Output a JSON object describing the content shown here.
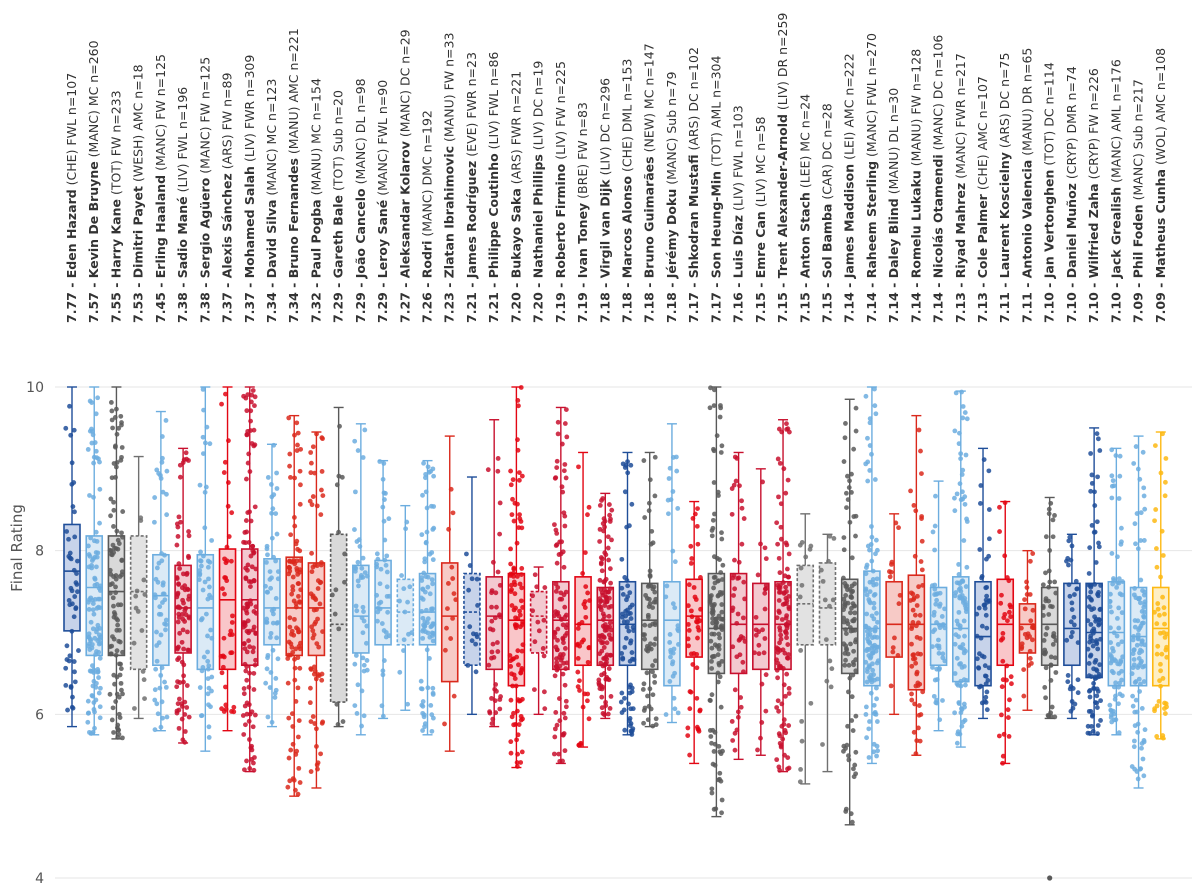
{
  "chart_data": {
    "type": "box",
    "ylabel": "Final Rating",
    "ylim": [
      4,
      10
    ],
    "yticks": [
      4,
      6,
      8,
      10
    ],
    "grid": true,
    "legend": "none",
    "series": [
      {
        "mean": "7.77",
        "player": "Eden Hazard",
        "info": "(CHE) FWL n=107",
        "color": "#1f4e99",
        "fill": "#c7d3ea",
        "q1": 7.02,
        "median": 7.75,
        "q3": 8.32,
        "wlo": 5.85,
        "whi": 10.0,
        "dashed": false
      },
      {
        "mean": "7.57",
        "player": "Kevin De Bruyne",
        "info": "(MANC) MC n=260",
        "color": "#6caddf",
        "fill": "#dbeaf6",
        "q1": 6.72,
        "median": 7.55,
        "q3": 8.18,
        "wlo": 5.75,
        "whi": 10.0,
        "dashed": false
      },
      {
        "mean": "7.55",
        "player": "Harry Kane",
        "info": "(TOT) FW n=233",
        "color": "#595959",
        "fill": "#d9d9d9",
        "q1": 6.72,
        "median": 7.5,
        "q3": 8.18,
        "wlo": 5.7,
        "whi": 10.0,
        "dashed": false
      },
      {
        "mean": "7.53",
        "player": "Dimitri Payet",
        "info": "(WESH) AMC n=18",
        "color": "#707070",
        "fill": "#e2e2e2",
        "q1": 6.55,
        "median": 7.5,
        "q3": 8.18,
        "wlo": 5.95,
        "whi": 9.15,
        "dashed": true
      },
      {
        "mean": "7.45",
        "player": "Erling Haaland",
        "info": "(MANC) FW n=125",
        "color": "#6caddf",
        "fill": "#dbeaf6",
        "q1": 6.6,
        "median": 7.45,
        "q3": 7.95,
        "wlo": 5.8,
        "whi": 9.7,
        "dashed": false
      },
      {
        "mean": "7.38",
        "player": "Sadio Mané",
        "info": "(LIV) FWL n=196",
        "color": "#c8102e",
        "fill": "#f3c9d0",
        "q1": 6.75,
        "median": 7.3,
        "q3": 7.82,
        "wlo": 5.65,
        "whi": 9.25,
        "dashed": false
      },
      {
        "mean": "7.38",
        "player": "Sergio Agüero",
        "info": "(MANC) FW n=125",
        "color": "#6caddf",
        "fill": "#dbeaf6",
        "q1": 6.55,
        "median": 7.3,
        "q3": 7.95,
        "wlo": 5.55,
        "whi": 10.0,
        "dashed": false
      },
      {
        "mean": "7.37",
        "player": "Alexis Sánchez",
        "info": "(ARS) FW n=89",
        "color": "#e30613",
        "fill": "#f9c6c9",
        "q1": 6.55,
        "median": 7.4,
        "q3": 8.02,
        "wlo": 5.8,
        "whi": 10.0,
        "dashed": false
      },
      {
        "mean": "7.37",
        "player": "Mohamed Salah",
        "info": "(LIV) FWR n=309",
        "color": "#c8102e",
        "fill": "#f3c9d0",
        "q1": 6.6,
        "median": 7.4,
        "q3": 8.02,
        "wlo": 5.3,
        "whi": 10.0,
        "dashed": false
      },
      {
        "mean": "7.34",
        "player": "David Silva",
        "info": "(MANC) MC n=123",
        "color": "#6caddf",
        "fill": "#dbeaf6",
        "q1": 6.85,
        "median": 7.3,
        "q3": 7.9,
        "wlo": 5.85,
        "whi": 9.3,
        "dashed": false
      },
      {
        "mean": "7.34",
        "player": "Bruno Fernandes",
        "info": "(MANU) AMC n=221",
        "color": "#da291c",
        "fill": "#f7cac6",
        "q1": 6.72,
        "median": 7.3,
        "q3": 7.92,
        "wlo": 5.0,
        "whi": 9.65,
        "dashed": false
      },
      {
        "mean": "7.32",
        "player": "Paul Pogba",
        "info": "(MANU) MC n=154",
        "color": "#da291c",
        "fill": "#f7cac6",
        "q1": 6.72,
        "median": 7.3,
        "q3": 7.85,
        "wlo": 5.1,
        "whi": 9.45,
        "dashed": false
      },
      {
        "mean": "7.29",
        "player": "Gareth Bale",
        "info": "(TOT) Sub n=20",
        "color": "#595959",
        "fill": "#d9d9d9",
        "q1": 6.15,
        "median": 7.1,
        "q3": 8.2,
        "wlo": 5.85,
        "whi": 9.75,
        "dashed": true
      },
      {
        "mean": "7.29",
        "player": "João Cancelo",
        "info": "(MANC) DL n=98",
        "color": "#6caddf",
        "fill": "#dbeaf6",
        "q1": 6.75,
        "median": 7.2,
        "q3": 7.82,
        "wlo": 5.75,
        "whi": 9.55,
        "dashed": false
      },
      {
        "mean": "7.29",
        "player": "Leroy Sané",
        "info": "(MANC) FWL n=90",
        "color": "#6caddf",
        "fill": "#dbeaf6",
        "q1": 6.85,
        "median": 7.3,
        "q3": 7.88,
        "wlo": 5.95,
        "whi": 9.1,
        "dashed": false
      },
      {
        "mean": "7.27",
        "player": "Aleksandar Kolarov",
        "info": "(MANC) DC n=29",
        "color": "#6caddf",
        "fill": "#dbeaf6",
        "q1": 6.85,
        "median": 7.25,
        "q3": 7.65,
        "wlo": 6.05,
        "whi": 8.55,
        "dashed": true
      },
      {
        "mean": "7.26",
        "player": "Rodri",
        "info": "(MANC) DMC n=192",
        "color": "#6caddf",
        "fill": "#dbeaf6",
        "q1": 6.85,
        "median": 7.25,
        "q3": 7.72,
        "wlo": 5.75,
        "whi": 9.1,
        "dashed": false
      },
      {
        "mean": "7.23",
        "player": "Zlatan Ibrahimovic",
        "info": "(MANU) FW n=33",
        "color": "#da291c",
        "fill": "#f7cac6",
        "q1": 6.4,
        "median": 7.2,
        "q3": 7.85,
        "wlo": 5.55,
        "whi": 9.4,
        "dashed": false
      },
      {
        "mean": "7.21",
        "player": "James Rodríguez",
        "info": "(EVE) FWR n=23",
        "color": "#1f4e99",
        "fill": "#c7d3ea",
        "q1": 6.6,
        "median": 7.25,
        "q3": 7.72,
        "wlo": 6.0,
        "whi": 8.9,
        "dashed": true
      },
      {
        "mean": "7.21",
        "player": "Philippe Coutinho",
        "info": "(LIV) FWL n=86",
        "color": "#c8102e",
        "fill": "#f3c9d0",
        "q1": 6.55,
        "median": 7.2,
        "q3": 7.68,
        "wlo": 5.85,
        "whi": 9.6,
        "dashed": false
      },
      {
        "mean": "7.20",
        "player": "Bukayo Saka",
        "info": "(ARS) FWR n=221",
        "color": "#e30613",
        "fill": "#f9c6c9",
        "q1": 6.35,
        "median": 7.15,
        "q3": 7.72,
        "wlo": 5.35,
        "whi": 10.0,
        "dashed": false
      },
      {
        "mean": "7.20",
        "player": "Nathaniel Phillips",
        "info": "(LIV) DC n=19",
        "color": "#c8102e",
        "fill": "#f3c9d0",
        "q1": 6.75,
        "median": 7.2,
        "q3": 7.5,
        "wlo": 6.0,
        "whi": 7.8,
        "dashed": true
      },
      {
        "mean": "7.19",
        "player": "Roberto Firmino",
        "info": "(LIV) FW n=225",
        "color": "#c8102e",
        "fill": "#f3c9d0",
        "q1": 6.55,
        "median": 7.15,
        "q3": 7.62,
        "wlo": 5.4,
        "whi": 9.75,
        "dashed": false
      },
      {
        "mean": "7.19",
        "player": "Ivan Toney",
        "info": "(BRE) FW n=83",
        "color": "#e30613",
        "fill": "#f9c6c9",
        "q1": 6.6,
        "median": 7.1,
        "q3": 7.68,
        "wlo": 5.6,
        "whi": 9.2,
        "dashed": false
      },
      {
        "mean": "7.18",
        "player": "Virgil van Dijk",
        "info": "(LIV) DC n=296",
        "color": "#c8102e",
        "fill": "#f3c9d0",
        "q1": 6.6,
        "median": 7.15,
        "q3": 7.55,
        "wlo": 5.95,
        "whi": 8.7,
        "dashed": false
      },
      {
        "mean": "7.18",
        "player": "Marcos Alonso",
        "info": "(CHE) DML n=153",
        "color": "#1f4e99",
        "fill": "#c7d3ea",
        "q1": 6.6,
        "median": 7.1,
        "q3": 7.62,
        "wlo": 5.75,
        "whi": 9.2,
        "dashed": false
      },
      {
        "mean": "7.18",
        "player": "Bruno Guimarães",
        "info": "(NEW) MC n=147",
        "color": "#595959",
        "fill": "#d9d9d9",
        "q1": 6.55,
        "median": 7.15,
        "q3": 7.6,
        "wlo": 5.85,
        "whi": 9.2,
        "dashed": false
      },
      {
        "mean": "7.18",
        "player": "Jérémy Doku",
        "info": "(MANC) Sub n=79",
        "color": "#6caddf",
        "fill": "#dbeaf6",
        "q1": 6.35,
        "median": 7.15,
        "q3": 7.62,
        "wlo": 5.9,
        "whi": 9.55,
        "dashed": false
      },
      {
        "mean": "7.17",
        "player": "Shkodran Mustafi",
        "info": "(ARS) DC n=102",
        "color": "#e30613",
        "fill": "#f9c6c9",
        "q1": 6.7,
        "median": 7.2,
        "q3": 7.65,
        "wlo": 5.4,
        "whi": 8.6,
        "dashed": false
      },
      {
        "mean": "7.17",
        "player": "Son Heung-Min",
        "info": "(TOT) AML n=304",
        "color": "#595959",
        "fill": "#d9d9d9",
        "q1": 6.5,
        "median": 7.05,
        "q3": 7.72,
        "wlo": 4.75,
        "whi": 10.0,
        "dashed": false
      },
      {
        "mean": "7.16",
        "player": "Luis Díaz",
        "info": "(LIV) FWL n=103",
        "color": "#c8102e",
        "fill": "#f3c9d0",
        "q1": 6.5,
        "median": 7.1,
        "q3": 7.72,
        "wlo": 5.45,
        "whi": 9.2,
        "dashed": false
      },
      {
        "mean": "7.15",
        "player": "Emre Can",
        "info": "(LIV) MC n=58",
        "color": "#c8102e",
        "fill": "#f3c9d0",
        "q1": 6.55,
        "median": 7.1,
        "q3": 7.6,
        "wlo": 5.5,
        "whi": 9.0,
        "dashed": false
      },
      {
        "mean": "7.15",
        "player": "Trent Alexander-Arnold",
        "info": "(LIV) DR n=259",
        "color": "#c8102e",
        "fill": "#f3c9d0",
        "q1": 6.55,
        "median": 7.1,
        "q3": 7.62,
        "wlo": 5.3,
        "whi": 9.6,
        "dashed": false
      },
      {
        "mean": "7.15",
        "player": "Anton Stach",
        "info": "(LEE) MC n=24",
        "color": "#707070",
        "fill": "#e2e2e2",
        "q1": 6.85,
        "median": 7.35,
        "q3": 7.82,
        "wlo": 5.15,
        "whi": 8.45,
        "dashed": true
      },
      {
        "mean": "7.15",
        "player": "Sol Bamba",
        "info": "(CAR) DC n=28",
        "color": "#707070",
        "fill": "#e2e2e2",
        "q1": 6.85,
        "median": 7.3,
        "q3": 7.85,
        "wlo": 5.3,
        "whi": 8.2,
        "dashed": true
      },
      {
        "mean": "7.14",
        "player": "James Maddison",
        "info": "(LEI) AMC n=222",
        "color": "#595959",
        "fill": "#d9d9d9",
        "q1": 6.5,
        "median": 7.05,
        "q3": 7.65,
        "wlo": 4.65,
        "whi": 9.85,
        "dashed": false
      },
      {
        "mean": "7.14",
        "player": "Raheem Sterling",
        "info": "(MANC) FWL n=270",
        "color": "#6caddf",
        "fill": "#dbeaf6",
        "q1": 6.35,
        "median": 7.05,
        "q3": 7.75,
        "wlo": 5.4,
        "whi": 10.0,
        "dashed": false
      },
      {
        "mean": "7.14",
        "player": "Daley Blind",
        "info": "(MANU) DL n=30",
        "color": "#da291c",
        "fill": "#f7cac6",
        "q1": 6.7,
        "median": 7.1,
        "q3": 7.62,
        "wlo": 6.0,
        "whi": 8.45,
        "dashed": false
      },
      {
        "mean": "7.14",
        "player": "Romelu Lukaku",
        "info": "(MANU) FW n=128",
        "color": "#da291c",
        "fill": "#f7cac6",
        "q1": 6.3,
        "median": 7.1,
        "q3": 7.7,
        "wlo": 5.5,
        "whi": 9.65,
        "dashed": false
      },
      {
        "mean": "7.14",
        "player": "Nicolás Otamendi",
        "info": "(MANC) DC n=106",
        "color": "#6caddf",
        "fill": "#dbeaf6",
        "q1": 6.6,
        "median": 7.1,
        "q3": 7.55,
        "wlo": 5.8,
        "whi": 8.85,
        "dashed": false
      },
      {
        "mean": "7.13",
        "player": "Riyad Mahrez",
        "info": "(MANC) FWR n=217",
        "color": "#6caddf",
        "fill": "#dbeaf6",
        "q1": 6.4,
        "median": 7.05,
        "q3": 7.68,
        "wlo": 5.6,
        "whi": 9.95,
        "dashed": false
      },
      {
        "mean": "7.13",
        "player": "Cole Palmer",
        "info": "(CHE) AMC n=107",
        "color": "#1f4e99",
        "fill": "#c7d3ea",
        "q1": 6.35,
        "median": 6.95,
        "q3": 7.62,
        "wlo": 5.95,
        "whi": 9.25,
        "dashed": false
      },
      {
        "mean": "7.11",
        "player": "Laurent Koscielny",
        "info": "(ARS) DC n=75",
        "color": "#e30613",
        "fill": "#f9c6c9",
        "q1": 6.6,
        "median": 7.1,
        "q3": 7.65,
        "wlo": 5.4,
        "whi": 8.6,
        "dashed": false
      },
      {
        "mean": "7.11",
        "player": "Antonio Valencia",
        "info": "(MANU) DR n=65",
        "color": "#da291c",
        "fill": "#f7cac6",
        "q1": 6.75,
        "median": 7.1,
        "q3": 7.35,
        "wlo": 6.05,
        "whi": 8.0,
        "dashed": false
      },
      {
        "mean": "7.10",
        "player": "Jan Vertonghen",
        "info": "(TOT) DC n=114",
        "color": "#595959",
        "fill": "#d9d9d9",
        "q1": 6.6,
        "median": 7.1,
        "q3": 7.55,
        "wlo": 5.95,
        "whi": 8.65,
        "dashed": false
      },
      {
        "mean": "7.10",
        "player": "Daniel Muñoz",
        "info": "(CRYP) DMR n=74",
        "color": "#1f4e99",
        "fill": "#c7d3ea",
        "q1": 6.6,
        "median": 7.05,
        "q3": 7.6,
        "wlo": 5.95,
        "whi": 8.2,
        "dashed": false
      },
      {
        "mean": "7.10",
        "player": "Wilfried Zaha",
        "info": "(CRYP) FW n=226",
        "color": "#1f4e99",
        "fill": "#c7d3ea",
        "q1": 6.45,
        "median": 7.0,
        "q3": 7.6,
        "wlo": 5.75,
        "whi": 9.5,
        "dashed": false
      },
      {
        "mean": "7.10",
        "player": "Jack Grealish",
        "info": "(MANC) AML n=176",
        "color": "#6caddf",
        "fill": "#dbeaf6",
        "q1": 6.35,
        "median": 7.0,
        "q3": 7.62,
        "wlo": 5.75,
        "whi": 9.25,
        "dashed": false
      },
      {
        "mean": "7.09",
        "player": "Phil Foden",
        "info": "(MANC) Sub n=217",
        "color": "#6caddf",
        "fill": "#dbeaf6",
        "q1": 6.35,
        "median": 6.95,
        "q3": 7.55,
        "wlo": 5.1,
        "whi": 9.4,
        "dashed": false
      },
      {
        "mean": "7.09",
        "player": "Matheus Cunha",
        "info": "(WOL) AMC n=108",
        "color": "#fdb913",
        "fill": "#feefc4",
        "q1": 6.35,
        "median": 7.05,
        "q3": 7.55,
        "wlo": 5.7,
        "whi": 9.45,
        "dashed": false
      }
    ]
  }
}
